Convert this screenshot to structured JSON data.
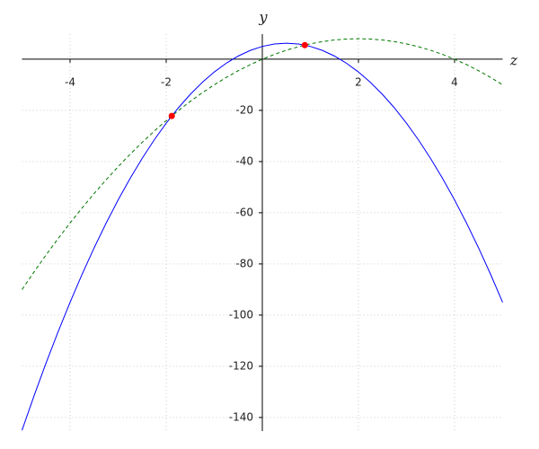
{
  "chart_data": {
    "type": "line",
    "x_label": "z",
    "y_label": "y",
    "xlim": [
      -5,
      5
    ],
    "ylim": [
      -145.3,
      9.8
    ],
    "xticks": [
      -4,
      -2,
      2,
      4
    ],
    "yticks": [
      -140,
      -120,
      -100,
      -80,
      -60,
      -40,
      -20
    ],
    "grid": true,
    "series": [
      {
        "color": "#0000ff",
        "style": "solid",
        "x": [
          -5,
          -4.75,
          -4.5,
          -4.25,
          -4,
          -3.75,
          -3.5,
          -3.25,
          -3,
          -2.75,
          -2.5,
          -2.25,
          -2,
          -1.75,
          -1.5,
          -1.25,
          -1,
          -0.75,
          -0.5,
          -0.25,
          0,
          0.25,
          0.5,
          0.75,
          1,
          1.25,
          1.5,
          1.75,
          2,
          2.25,
          2.5,
          2.75,
          3,
          3.25,
          3.5,
          3.75,
          4,
          4.25,
          4.5,
          4.75,
          5
        ],
        "values": [
          -145,
          -131.5625,
          -118.75,
          -106.5625,
          -95,
          -84.0625,
          -73.75,
          -64.0625,
          -55,
          -46.5625,
          -38.75,
          -31.5625,
          -25,
          -19.0625,
          -13.75,
          -9.0625,
          -5,
          -1.5625,
          1.25,
          3.4375,
          5,
          5.9375,
          6.25,
          5.9375,
          5,
          3.4375,
          1.25,
          -1.5625,
          -5,
          -9.0625,
          -13.75,
          -19.0625,
          -25,
          -31.5625,
          -38.75,
          -46.5625,
          -55,
          -64.0625,
          -73.75,
          -84.0625,
          -95
        ]
      },
      {
        "color": "#007700",
        "style": "dashed",
        "x": [
          -5,
          -4.75,
          -4.5,
          -4.25,
          -4,
          -3.75,
          -3.5,
          -3.25,
          -3,
          -2.75,
          -2.5,
          -2.25,
          -2,
          -1.75,
          -1.5,
          -1.25,
          -1,
          -0.75,
          -0.5,
          -0.25,
          0,
          0.25,
          0.5,
          0.75,
          1,
          1.25,
          1.5,
          1.75,
          2,
          2.25,
          2.5,
          2.75,
          3,
          3.25,
          3.5,
          3.75,
          4,
          4.25,
          4.5,
          4.75,
          5
        ],
        "values": [
          -90,
          -83.125,
          -76.5,
          -70.125,
          -64,
          -58.125,
          -52.5,
          -47.125,
          -42,
          -37.125,
          -32.5,
          -28.125,
          -24,
          -20.125,
          -16.5,
          -13.125,
          -10,
          -7.125,
          -4.5,
          -2.125,
          0,
          1.875,
          3.5,
          4.875,
          6,
          6.875,
          7.5,
          7.875,
          8,
          7.875,
          7.5,
          6.875,
          6,
          4.875,
          3.5,
          1.875,
          0,
          -2.125,
          -4.5,
          -7.125,
          -10
        ]
      },
      {
        "color": "#ff0000",
        "style": "markers",
        "x": [
          -1.884,
          0.884
        ],
        "values": [
          -22.17,
          5.51
        ]
      }
    ]
  }
}
